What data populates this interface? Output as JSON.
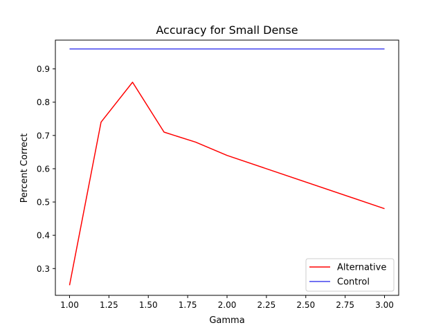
{
  "chart_data": {
    "type": "line",
    "title": "Accuracy for Small Dense",
    "xlabel": "Gamma",
    "ylabel": "Percent Correct",
    "xlim": [
      0.91,
      3.09
    ],
    "ylim": [
      0.2195,
      0.9865
    ],
    "xticks": [
      1.0,
      1.25,
      1.5,
      1.75,
      2.0,
      2.25,
      2.5,
      2.75,
      3.0
    ],
    "xtick_labels": [
      "1.00",
      "1.25",
      "1.50",
      "1.75",
      "2.00",
      "2.25",
      "2.50",
      "2.75",
      "3.00"
    ],
    "yticks": [
      0.3,
      0.4,
      0.5,
      0.6,
      0.7,
      0.8,
      0.9
    ],
    "ytick_labels": [
      "0.3",
      "0.4",
      "0.5",
      "0.6",
      "0.7",
      "0.8",
      "0.9"
    ],
    "grid": false,
    "legend_position": "lower-right",
    "series": [
      {
        "name": "Alternative",
        "color": "#ff0000",
        "x": [
          1.0,
          1.2,
          1.4,
          1.6,
          1.8,
          2.0,
          3.0
        ],
        "y": [
          0.25,
          0.74,
          0.86,
          0.71,
          0.68,
          0.64,
          0.48
        ]
      },
      {
        "name": "Control",
        "color": "#4444ee",
        "x": [
          1.0,
          3.0
        ],
        "y": [
          0.96,
          0.96
        ]
      }
    ]
  }
}
